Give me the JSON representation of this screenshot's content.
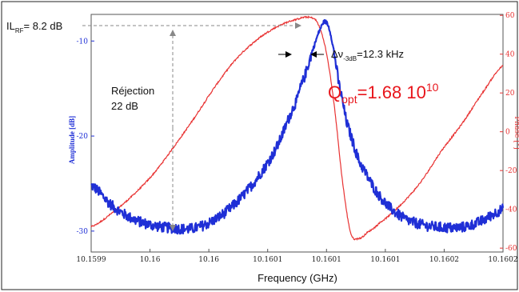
{
  "chart_data": {
    "type": "line",
    "xlabel": "Frequency (GHz)",
    "ylabel_left": "Amplitude [dB]",
    "ylabel_right": "Phase [°]",
    "x_ticks": [
      "10.1599",
      "10.16",
      "10.16",
      "10.1601",
      "10.1601",
      "10.1601",
      "10.1602",
      "10.1602"
    ],
    "y_left_ticks": [
      -10,
      -20,
      -30
    ],
    "y_left_lim": [
      -32.2,
      -7.2
    ],
    "y_right_ticks": [
      60,
      40,
      20,
      0,
      -20,
      -40,
      -60
    ],
    "y_right_lim": [
      -62,
      60.5
    ],
    "x_lim": [
      0,
      1
    ],
    "colors": {
      "amplitude": "#1f2fd6",
      "phase": "#e83232",
      "annotation_red": "#e8151b",
      "arrows": "#888888"
    },
    "series": [
      {
        "name": "Amplitude",
        "axis": "left",
        "x": [
          0.0,
          0.05,
          0.1,
          0.15,
          0.2,
          0.25,
          0.3,
          0.35,
          0.4,
          0.45,
          0.5,
          0.52,
          0.54,
          0.56,
          0.57,
          0.58,
          0.59,
          0.6,
          0.62,
          0.65,
          0.7,
          0.75,
          0.8,
          0.85,
          0.9,
          0.95,
          1.0
        ],
        "values": [
          -25.2,
          -27.3,
          -28.7,
          -29.4,
          -29.7,
          -29.7,
          -28.8,
          -27.1,
          -24.6,
          -21.2,
          -16.2,
          -13.5,
          -10.7,
          -8.4,
          -8.0,
          -9.0,
          -11.3,
          -14.2,
          -18.5,
          -22.6,
          -26.3,
          -28.4,
          -29.3,
          -29.6,
          -29.6,
          -28.9,
          -27.7
        ]
      },
      {
        "name": "Phase",
        "axis": "right",
        "x": [
          0.0,
          0.05,
          0.1,
          0.15,
          0.2,
          0.25,
          0.3,
          0.35,
          0.4,
          0.45,
          0.5,
          0.53,
          0.55,
          0.57,
          0.59,
          0.61,
          0.63,
          0.65,
          0.67,
          0.7,
          0.75,
          0.8,
          0.85,
          0.9,
          0.95,
          1.0
        ],
        "values": [
          -49,
          -42,
          -33,
          -22,
          -8,
          7,
          23,
          37,
          47,
          54,
          58,
          59,
          56,
          42,
          14,
          -25,
          -52,
          -55,
          -52,
          -47,
          -38,
          -26,
          -10,
          4,
          20,
          34
        ]
      }
    ],
    "annotations": {
      "il_rf": {
        "text_main": "IL",
        "text_sub": "RF",
        "text_rest": "= 8.2 dB"
      },
      "rejection_line1": "Réjection",
      "rejection_line2": "22 dB",
      "bandwidth": {
        "prefix": "Δν",
        "sub": "-3dB",
        "rest": "=12.3 kHz"
      },
      "q_opt": {
        "main": "Q",
        "sub": "opt",
        "mid": "=1.68  10",
        "sup": "10"
      }
    }
  }
}
